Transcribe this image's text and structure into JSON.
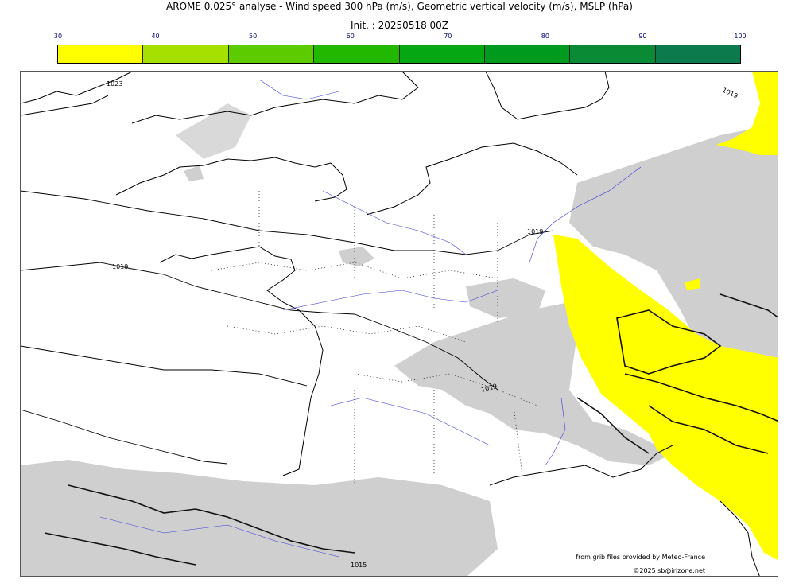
{
  "header": {
    "title": "AROME 0.025° analyse - Wind speed 300 hPa (m/s), Geometric vertical velocity (m/s), MSLP (hPa)",
    "subtitle": "Init. : 20250518 00Z"
  },
  "colorbar": {
    "ticks": [
      "30",
      "40",
      "50",
      "60",
      "70",
      "80",
      "90",
      "100"
    ],
    "colors": [
      "#ffff00",
      "#a6e000",
      "#5ccc00",
      "#22b800",
      "#05a712",
      "#009a1e",
      "#0b8a36",
      "#0c7a4d"
    ]
  },
  "map": {
    "isobar_labels": [
      "1023",
      "1019",
      "1019",
      "1019",
      "1019",
      "1015",
      "1015"
    ],
    "wind_fill_color": "#ffff00",
    "vertical_velocity_shade": "#cccccc"
  },
  "footer": {
    "source": "from grib files provided by Meteo-France",
    "copyright": "©2025 sb@irizone.net"
  }
}
